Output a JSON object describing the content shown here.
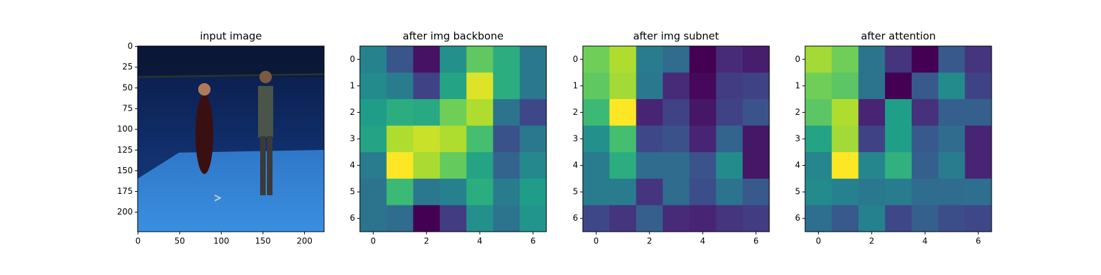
{
  "chart_data": [
    {
      "type": "image",
      "title": "input image",
      "xlim": [
        -0.5,
        223.5
      ],
      "ylim": [
        223.5,
        -0.5
      ],
      "xticks": [
        0,
        50,
        100,
        150,
        200
      ],
      "yticks": [
        0,
        25,
        50,
        75,
        100,
        125,
        150,
        175,
        200
      ]
    },
    {
      "type": "heatmap",
      "title": "after img backbone",
      "colormap": "viridis",
      "xlim": [
        -0.5,
        6.5
      ],
      "ylim": [
        6.5,
        -0.5
      ],
      "xticks": [
        0,
        2,
        4,
        6
      ],
      "yticks": [
        0,
        1,
        2,
        3,
        4,
        5,
        6
      ],
      "values": [
        [
          0.45,
          0.27,
          0.05,
          0.5,
          0.75,
          0.62,
          0.4
        ],
        [
          0.48,
          0.42,
          0.2,
          0.58,
          0.95,
          0.62,
          0.4
        ],
        [
          0.55,
          0.62,
          0.6,
          0.78,
          0.88,
          0.38,
          0.22
        ],
        [
          0.58,
          0.88,
          0.92,
          0.88,
          0.7,
          0.25,
          0.4
        ],
        [
          0.42,
          1.0,
          0.87,
          0.76,
          0.58,
          0.32,
          0.47
        ],
        [
          0.38,
          0.68,
          0.4,
          0.44,
          0.62,
          0.42,
          0.55
        ],
        [
          0.38,
          0.35,
          0.0,
          0.18,
          0.5,
          0.38,
          0.52
        ]
      ]
    },
    {
      "type": "heatmap",
      "title": "after img subnet",
      "colormap": "viridis",
      "xlim": [
        -0.5,
        6.5
      ],
      "ylim": [
        6.5,
        -0.5
      ],
      "xticks": [
        0,
        2,
        4,
        6
      ],
      "yticks": [
        0,
        1,
        2,
        3,
        4,
        5,
        6
      ],
      "values": [
        [
          0.78,
          0.88,
          0.42,
          0.35,
          0.0,
          0.12,
          0.08
        ],
        [
          0.75,
          0.86,
          0.4,
          0.12,
          0.02,
          0.18,
          0.2
        ],
        [
          0.68,
          1.0,
          0.1,
          0.2,
          0.06,
          0.2,
          0.26
        ],
        [
          0.5,
          0.7,
          0.22,
          0.25,
          0.1,
          0.32,
          0.06
        ],
        [
          0.42,
          0.62,
          0.35,
          0.35,
          0.26,
          0.48,
          0.06
        ],
        [
          0.42,
          0.42,
          0.15,
          0.35,
          0.24,
          0.38,
          0.28
        ],
        [
          0.22,
          0.15,
          0.3,
          0.12,
          0.1,
          0.15,
          0.18
        ]
      ]
    },
    {
      "type": "heatmap",
      "title": "after attention",
      "colormap": "viridis",
      "xlim": [
        -0.5,
        6.5
      ],
      "ylim": [
        6.5,
        -0.5
      ],
      "xticks": [
        0,
        2,
        4,
        6
      ],
      "yticks": [
        0,
        1,
        2,
        3,
        4,
        5,
        6
      ],
      "values": [
        [
          0.86,
          0.78,
          0.38,
          0.15,
          0.0,
          0.28,
          0.15
        ],
        [
          0.78,
          0.74,
          0.38,
          0.0,
          0.28,
          0.48,
          0.2
        ],
        [
          0.74,
          0.88,
          0.1,
          0.56,
          0.14,
          0.3,
          0.3
        ],
        [
          0.58,
          0.86,
          0.2,
          0.56,
          0.28,
          0.35,
          0.1
        ],
        [
          0.46,
          1.0,
          0.46,
          0.64,
          0.3,
          0.42,
          0.1
        ],
        [
          0.48,
          0.44,
          0.4,
          0.42,
          0.35,
          0.35,
          0.36
        ],
        [
          0.36,
          0.28,
          0.44,
          0.22,
          0.3,
          0.24,
          0.22
        ]
      ]
    }
  ]
}
